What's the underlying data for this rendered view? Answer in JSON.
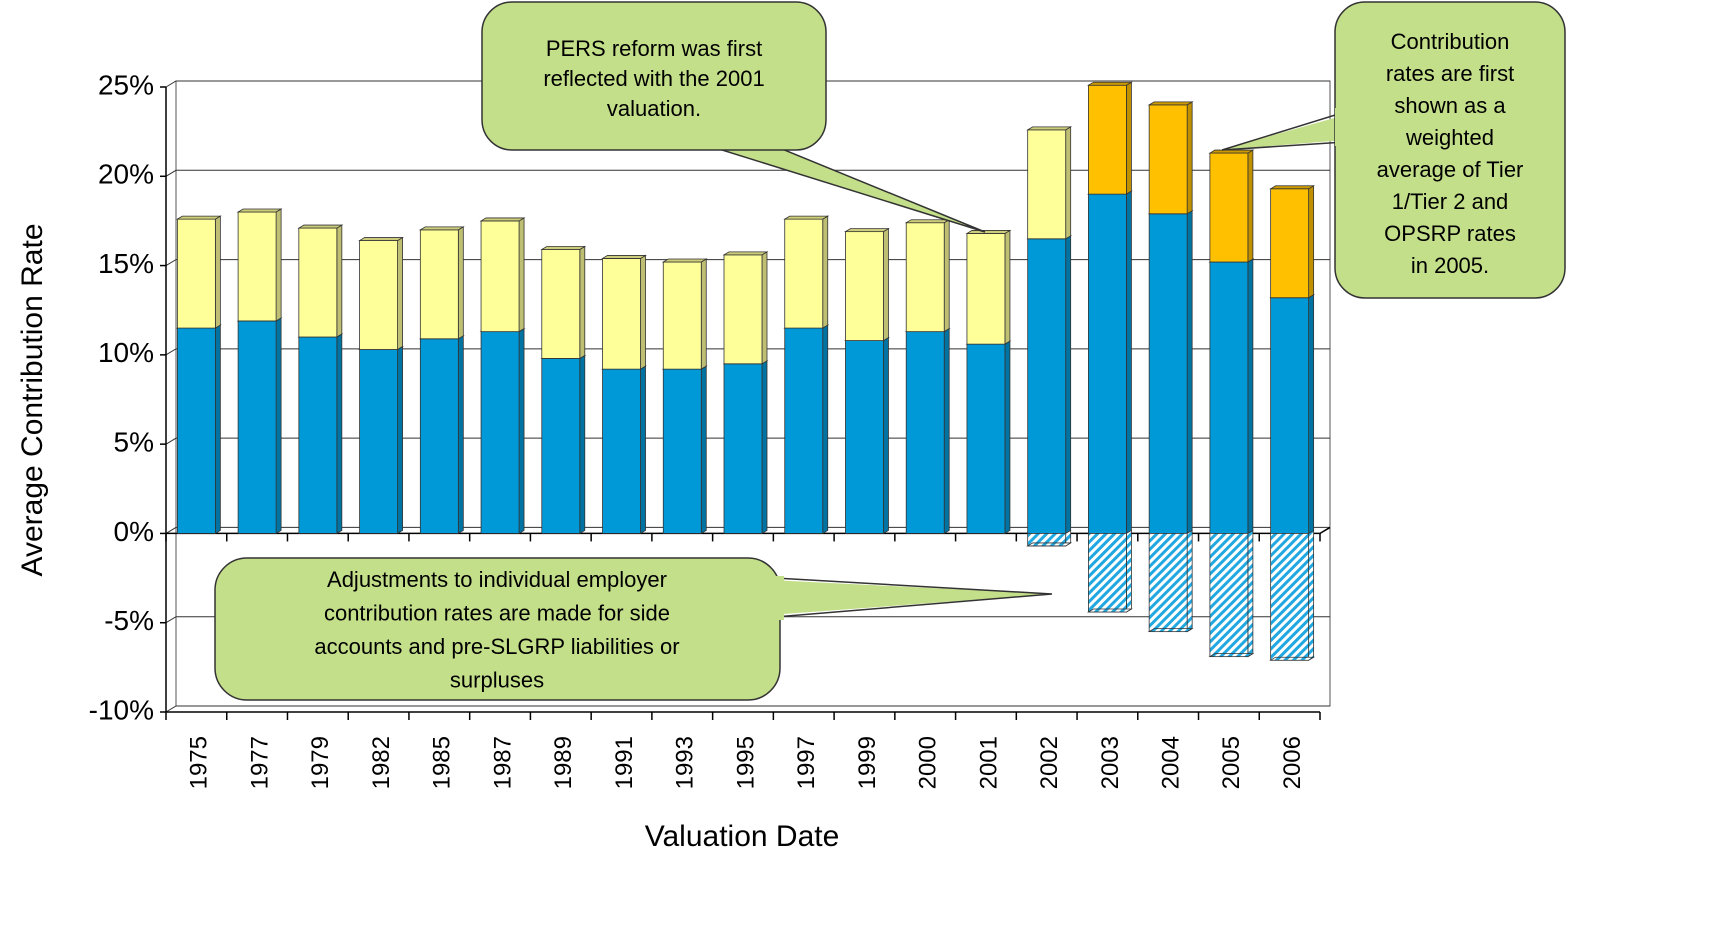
{
  "chart_data": {
    "type": "bar",
    "stacked": true,
    "xlabel": "Valuation Date",
    "ylabel": "Average Contribution Rate",
    "categories": [
      "1975",
      "1977",
      "1979",
      "1982",
      "1985",
      "1987",
      "1989",
      "1991",
      "1993",
      "1995",
      "1997",
      "1999",
      "2000",
      "2001",
      "2002",
      "2003",
      "2004",
      "2005",
      "2006"
    ],
    "series": [
      {
        "color": "#0099d8",
        "values": [
          11.5,
          11.9,
          11.0,
          10.3,
          10.9,
          11.3,
          9.8,
          9.2,
          9.2,
          9.5,
          11.5,
          10.8,
          11.3,
          10.6,
          16.5,
          19.0,
          17.9,
          15.2,
          13.2
        ]
      },
      {
        "color": "#ffff99",
        "values": [
          6.1,
          6.1,
          6.1,
          6.1,
          6.1,
          6.2,
          6.1,
          6.2,
          6.0,
          6.1,
          6.1,
          6.1,
          6.1,
          6.2,
          6.1,
          null,
          null,
          null,
          null
        ]
      },
      {
        "color": "#ffc000",
        "values": [
          null,
          null,
          null,
          null,
          null,
          null,
          null,
          null,
          null,
          null,
          null,
          null,
          null,
          null,
          null,
          6.1,
          6.1,
          6.1,
          6.1
        ]
      },
      {
        "color": "#66c8f0",
        "hatch": true,
        "values": [
          null,
          null,
          null,
          null,
          null,
          null,
          null,
          null,
          null,
          null,
          null,
          null,
          null,
          null,
          -0.7,
          -4.4,
          -5.5,
          -6.9,
          -7.1
        ]
      }
    ],
    "ylim": [
      -10,
      25
    ],
    "yticks": [
      {
        "value": -10,
        "label": "-10%"
      },
      {
        "value": -5,
        "label": "-5%"
      },
      {
        "value": 0,
        "label": "0%"
      },
      {
        "value": 5,
        "label": "5%"
      },
      {
        "value": 10,
        "label": "10%"
      },
      {
        "value": 15,
        "label": "15%"
      },
      {
        "value": 20,
        "label": "20%"
      },
      {
        "value": 25,
        "label": "25%"
      }
    ],
    "grid": true,
    "annotations": [
      {
        "lines": [
          "PERS reform was first",
          "reflected with the 2001",
          "valuation."
        ]
      },
      {
        "lines": [
          "Contribution",
          "rates are first",
          "shown as a",
          "weighted",
          "average of Tier",
          "1/Tier 2 and",
          "OPSRP rates",
          "in 2005."
        ]
      },
      {
        "lines": [
          "Adjustments to individual employer",
          "contribution rates are made for side",
          "accounts and pre-SLGRP liabilities or",
          "surpluses"
        ]
      }
    ]
  }
}
